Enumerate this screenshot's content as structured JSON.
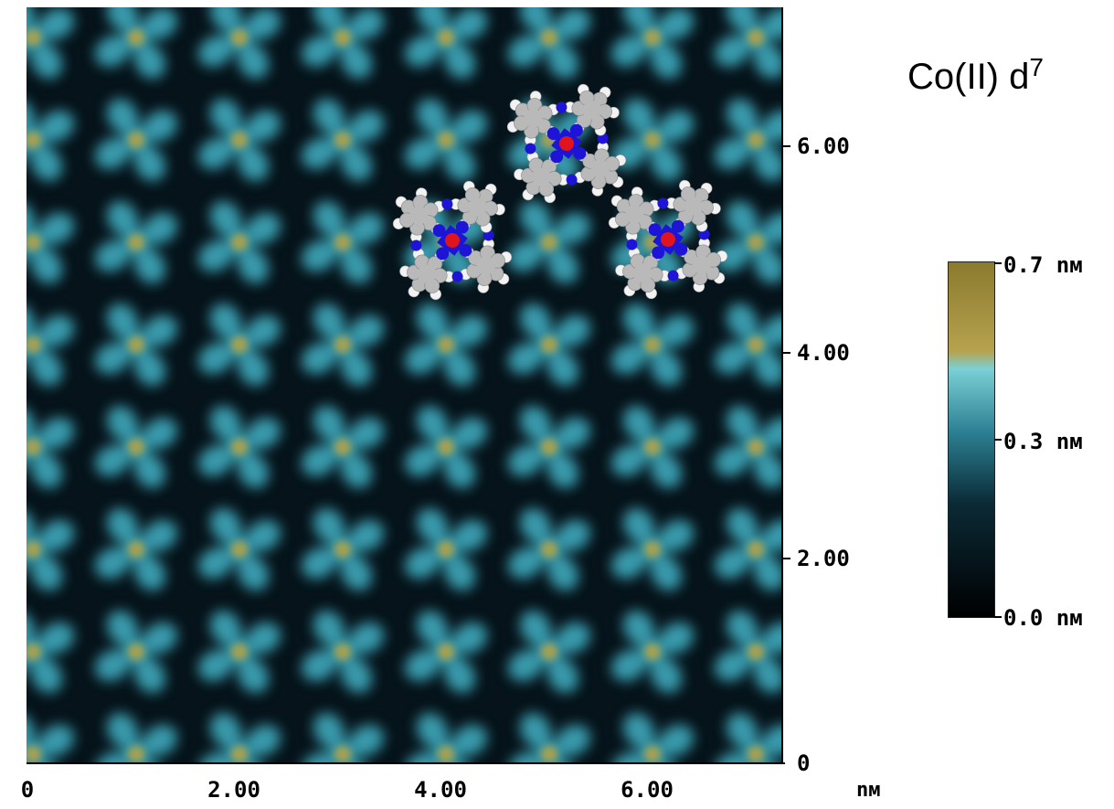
{
  "title": "Co(II) d",
  "title_superscript": "7",
  "x_axis": {
    "ticks": [
      "0",
      "2.00",
      "4.00",
      "6.00"
    ],
    "unit": "nм",
    "range": [
      0,
      7.3
    ]
  },
  "y_axis": {
    "ticks": [
      "0",
      "2.00",
      "4.00",
      "6.00"
    ],
    "range": [
      0,
      7.3
    ]
  },
  "colorbar": {
    "labels": [
      "0.7 nм",
      "0.3 nм",
      "0.0 nм"
    ],
    "values_nm": [
      0.7,
      0.3,
      0.0
    ],
    "colors": [
      "#000000",
      "#0b2a36",
      "#2b7f92",
      "#7bd0d6",
      "#b6a24e",
      "#8b7a2e"
    ]
  },
  "image": {
    "colors": {
      "background": "#06131a",
      "lobe": "#3fa8bb",
      "center": "#a8a050",
      "ring_c": "#b9b9b9",
      "ring_h": "#f2f2f2",
      "n_atom": "#1e14d8",
      "metal": "#e0141c"
    },
    "molecule_models": 3
  }
}
